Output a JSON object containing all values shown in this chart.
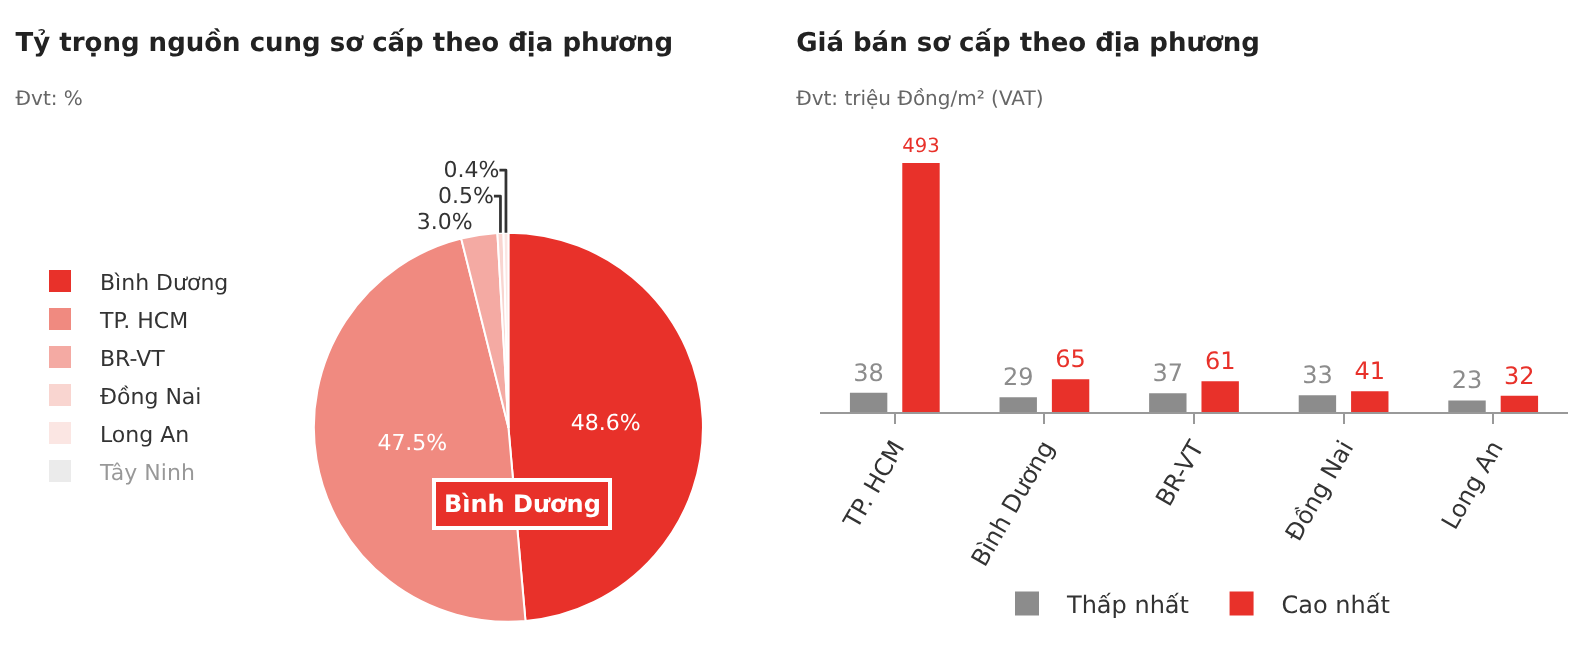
{
  "chart_data": [
    {
      "type": "pie",
      "title": "Tỷ trọng nguồn cung sơ cấp theo địa phương",
      "subtitle": "Đvt: %",
      "categories": [
        "Bình Dương",
        "TP. HCM",
        "BR-VT",
        "Đồng Nai",
        "Long An",
        "Tây Ninh"
      ],
      "values": [
        48.6,
        47.5,
        3.0,
        0.5,
        0.4,
        0
      ],
      "colors": [
        "#e8312a",
        "#f08a80",
        "#f4aaa3",
        "#f9d5d0",
        "#fbe6e3",
        "#d9d9d9"
      ],
      "value_labels": [
        "48.6%",
        "47.5%",
        "3.0%",
        "0.5%",
        "0.4%",
        null
      ],
      "annotations": [
        "Bình Dương"
      ],
      "legend": "left"
    },
    {
      "type": "bar",
      "title": "Giá bán sơ cấp theo địa phương",
      "subtitle": "Đvt: triệu Đồng/m² (VAT)",
      "categories": [
        "TP. HCM",
        "Bình Dương",
        "BR-VT",
        "Đồng Nai",
        "Long An"
      ],
      "series": [
        {
          "name": "Thấp nhất",
          "color": "#8c8c8c",
          "values": [
            38,
            29,
            37,
            33,
            23
          ]
        },
        {
          "name": "Cao nhất",
          "color": "#e8312a",
          "values": [
            493,
            65,
            61,
            41,
            32
          ]
        }
      ],
      "data_labels": true,
      "legend": "bottom",
      "grid": false
    }
  ]
}
